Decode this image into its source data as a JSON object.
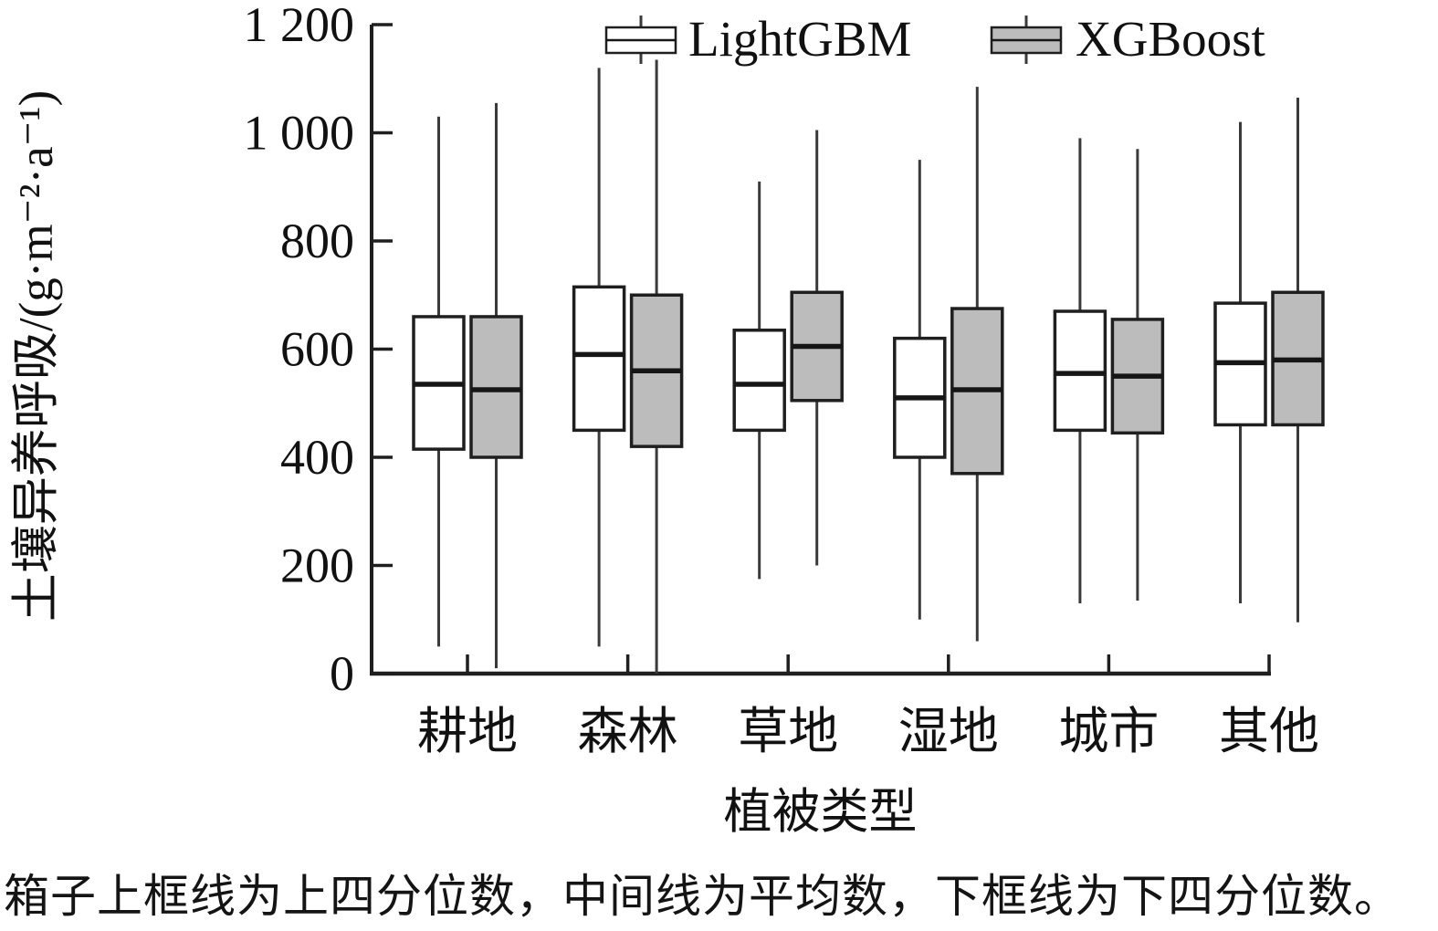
{
  "figure": {
    "footnote": "箱子上框线为上四分位数，中间线为平均数，下框线为下四分位数。"
  },
  "chart_data": {
    "type": "boxplot",
    "title": "",
    "xlabel": "植被类型",
    "ylabel": "土壤异养呼吸/(g·m⁻²·a⁻¹)",
    "categories": [
      "耕地",
      "森林",
      "草地",
      "湿地",
      "城市",
      "其他"
    ],
    "y_axis": {
      "min": 0,
      "max": 1200,
      "tick_step": 200,
      "tick_labels": [
        "0",
        "200",
        "400",
        "600",
        "800",
        "1 000",
        "1 200"
      ],
      "grid": false
    },
    "legend_position": "top",
    "box_semantics": {
      "top_edge": "上四分位数",
      "middle_line": "平均数",
      "bottom_edge": "下四分位数"
    },
    "colors": {
      "stroke": "#1f1f1f",
      "whisker": "#3a3a3a",
      "mean_line": "#161616",
      "lightgbm_fill": "#ffffff",
      "xgboost_fill": "#bcbcbc"
    },
    "series": [
      {
        "name": "LightGBM",
        "fill": "#ffffff",
        "boxes": [
          {
            "category": "耕地",
            "whisker_low": 50,
            "q1": 415,
            "mean": 535,
            "q3": 660,
            "whisker_high": 1030
          },
          {
            "category": "森林",
            "whisker_low": 50,
            "q1": 450,
            "mean": 590,
            "q3": 715,
            "whisker_high": 1120
          },
          {
            "category": "草地",
            "whisker_low": 175,
            "q1": 450,
            "mean": 535,
            "q3": 635,
            "whisker_high": 910
          },
          {
            "category": "湿地",
            "whisker_low": 100,
            "q1": 400,
            "mean": 510,
            "q3": 620,
            "whisker_high": 950
          },
          {
            "category": "城市",
            "whisker_low": 130,
            "q1": 450,
            "mean": 555,
            "q3": 670,
            "whisker_high": 990
          },
          {
            "category": "其他",
            "whisker_low": 130,
            "q1": 460,
            "mean": 575,
            "q3": 685,
            "whisker_high": 1020
          }
        ]
      },
      {
        "name": "XGBoost",
        "fill": "#bcbcbc",
        "boxes": [
          {
            "category": "耕地",
            "whisker_low": 10,
            "q1": 400,
            "mean": 525,
            "q3": 660,
            "whisker_high": 1055
          },
          {
            "category": "森林",
            "whisker_low": 0,
            "q1": 420,
            "mean": 560,
            "q3": 700,
            "whisker_high": 1135
          },
          {
            "category": "草地",
            "whisker_low": 200,
            "q1": 505,
            "mean": 605,
            "q3": 705,
            "whisker_high": 1005
          },
          {
            "category": "湿地",
            "whisker_low": 60,
            "q1": 370,
            "mean": 525,
            "q3": 675,
            "whisker_high": 1085
          },
          {
            "category": "城市",
            "whisker_low": 135,
            "q1": 445,
            "mean": 550,
            "q3": 655,
            "whisker_high": 970
          },
          {
            "category": "其他",
            "whisker_low": 95,
            "q1": 460,
            "mean": 580,
            "q3": 705,
            "whisker_high": 1065
          }
        ]
      }
    ]
  }
}
